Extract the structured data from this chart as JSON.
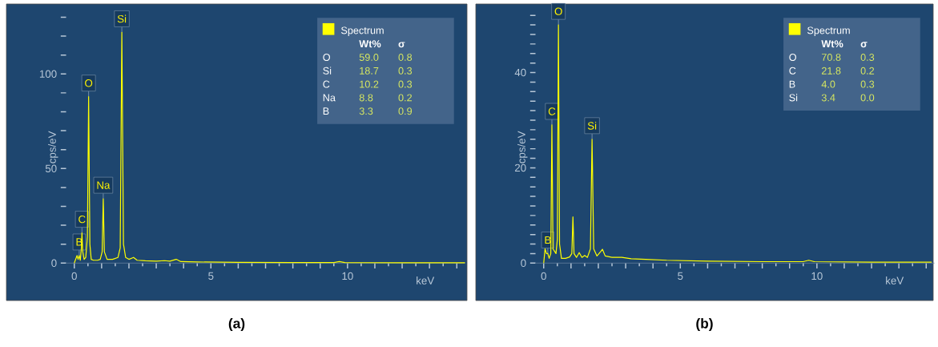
{
  "chart_data": [
    {
      "type": "line",
      "title": "(a)",
      "xlabel": "keV",
      "ylabel": "cps/eV",
      "legend": "top right",
      "xlim": [
        -0.3,
        14.3
      ],
      "ylim": [
        0,
        136
      ],
      "xticks": [
        0,
        {
          "value": 1,
          "label": null
        },
        {
          "value": 2,
          "label": null
        },
        {
          "value": 3,
          "label": null
        },
        {
          "value": 4,
          "label": null
        },
        5,
        {
          "value": 6,
          "label": null
        },
        {
          "value": 7,
          "label": null
        },
        {
          "value": 8,
          "label": null
        },
        {
          "value": 9,
          "label": null
        },
        10,
        {
          "value": 11,
          "label": null
        },
        {
          "value": 12,
          "label": null
        },
        {
          "value": 13,
          "label": null
        },
        {
          "value": 14,
          "label": null
        }
      ],
      "yticks": [
        0,
        {
          "value": 10,
          "label": null
        },
        {
          "value": 20,
          "label": null
        },
        {
          "value": 30,
          "label": null
        },
        {
          "value": 40,
          "label": null
        },
        50,
        {
          "value": 60,
          "label": null
        },
        {
          "value": 70,
          "label": null
        },
        {
          "value": 80,
          "label": null
        },
        {
          "value": 90,
          "label": null
        },
        100,
        {
          "value": 110,
          "label": null
        },
        {
          "value": 120,
          "label": null
        },
        {
          "value": 130,
          "label": null
        }
      ],
      "series": [
        {
          "name": "Spectrum",
          "color": "#ffff00",
          "x": [
            0,
            0.05,
            0.1,
            0.14,
            0.18,
            0.22,
            0.26,
            0.28,
            0.31,
            0.36,
            0.42,
            0.48,
            0.525,
            0.57,
            0.62,
            0.7,
            0.85,
            0.95,
            1.02,
            1.06,
            1.1,
            1.2,
            1.4,
            1.6,
            1.68,
            1.74,
            1.8,
            1.88,
            2.0,
            2.17,
            2.3,
            2.6,
            3.0,
            3.3,
            3.5,
            3.73,
            3.9,
            4.5,
            6,
            8,
            9.5,
            9.7,
            9.9,
            12,
            14.3
          ],
          "values": [
            0,
            2,
            4,
            2,
            4,
            1.5,
            8,
            16,
            6,
            2,
            3,
            14,
            88,
            10,
            2,
            1.5,
            1.5,
            2,
            6,
            34,
            6,
            2,
            2,
            3,
            8,
            122,
            10,
            3,
            2,
            3,
            1.5,
            1.2,
            1,
            1.3,
            1,
            2,
            0.8,
            0.6,
            0.4,
            0.3,
            0.3,
            0.8,
            0.3,
            0.2,
            0.2
          ]
        }
      ],
      "annotations": [
        {
          "text": "B",
          "x": 0.18,
          "y": 4
        },
        {
          "text": "C",
          "x": 0.28,
          "y": 16
        },
        {
          "text": "O",
          "x": 0.525,
          "y": 88
        },
        {
          "text": "Na",
          "x": 1.06,
          "y": 34
        },
        {
          "text": "Si",
          "x": 1.74,
          "y": 122
        },
        "Wt%",
        "σ",
        "O",
        "59.0",
        "0.8",
        "Si",
        "18.7",
        "0.3",
        "C",
        "10.2",
        "0.3",
        "Na",
        "8.8",
        "0.2",
        "B",
        "3.3",
        "0.9"
      ]
    },
    {
      "type": "line",
      "title": "(b)",
      "xlabel": "keV",
      "ylabel": "cps/eV",
      "legend": "top right",
      "xlim": [
        -0.3,
        14.3
      ],
      "ylim": [
        0,
        54
      ],
      "xticks": [
        0,
        {
          "value": 1,
          "label": null
        },
        {
          "value": 2,
          "label": null
        },
        {
          "value": 3,
          "label": null
        },
        {
          "value": 4,
          "label": null
        },
        5,
        {
          "value": 6,
          "label": null
        },
        {
          "value": 7,
          "label": null
        },
        {
          "value": 8,
          "label": null
        },
        {
          "value": 9,
          "label": null
        },
        10,
        {
          "value": 11,
          "label": null
        },
        {
          "value": 12,
          "label": null
        },
        {
          "value": 13,
          "label": null
        },
        {
          "value": 14,
          "label": null
        }
      ],
      "yticks": [
        0,
        {
          "value": 2,
          "label": null
        },
        {
          "value": 4,
          "label": null
        },
        {
          "value": 6,
          "label": null
        },
        {
          "value": 8,
          "label": null
        },
        {
          "value": 10,
          "label": null
        },
        {
          "value": 12,
          "label": null
        },
        {
          "value": 14,
          "label": null
        },
        {
          "value": 16,
          "label": null
        },
        {
          "value": 18,
          "label": null
        },
        20,
        {
          "value": 22,
          "label": null
        },
        {
          "value": 24,
          "label": null
        },
        {
          "value": 26,
          "label": null
        },
        {
          "value": 28,
          "label": null
        },
        {
          "value": 30,
          "label": null
        },
        {
          "value": 32,
          "label": null
        },
        {
          "value": 34,
          "label": null
        },
        {
          "value": 36,
          "label": null
        },
        {
          "value": 38,
          "label": null
        },
        40,
        {
          "value": 42,
          "label": null
        },
        {
          "value": 44,
          "label": null
        },
        {
          "value": 46,
          "label": null
        },
        {
          "value": 48,
          "label": null
        },
        {
          "value": 50,
          "label": null
        },
        {
          "value": 52,
          "label": null
        }
      ],
      "series": [
        {
          "name": "Spectrum",
          "color": "#ffff00",
          "x": [
            0,
            0.05,
            0.1,
            0.15,
            0.2,
            0.26,
            0.3,
            0.34,
            0.45,
            0.5,
            0.54,
            0.58,
            0.65,
            0.8,
            0.95,
            1.03,
            1.07,
            1.11,
            1.2,
            1.3,
            1.4,
            1.5,
            1.6,
            1.71,
            1.77,
            1.83,
            1.95,
            2.1,
            2.15,
            2.25,
            2.5,
            2.86,
            3.2,
            3.73,
            4.5,
            6,
            8,
            9.5,
            9.7,
            9.9,
            12,
            14.2
          ],
          "values": [
            0,
            3,
            2,
            2,
            1,
            2,
            29,
            3,
            2,
            5,
            50,
            4,
            1,
            1,
            1.3,
            2,
            9.7,
            2,
            1.2,
            2.2,
            1.2,
            1.6,
            1.2,
            3,
            26,
            3,
            1.5,
            2.5,
            2.9,
            1.5,
            1.2,
            1.2,
            0.9,
            0.8,
            0.6,
            0.4,
            0.3,
            0.3,
            0.6,
            0.3,
            0.2,
            0.2
          ]
        }
      ],
      "annotations": [
        {
          "text": "B",
          "x": 0.15,
          "y": 2
        },
        {
          "text": "C",
          "x": 0.3,
          "y": 29
        },
        {
          "text": "O",
          "x": 0.54,
          "y": 50
        },
        {
          "text": "Si",
          "x": 1.77,
          "y": 26
        },
        "Wt%",
        "σ",
        "O",
        "70.8",
        "0.3",
        "C",
        "21.8",
        "0.2",
        "B",
        "4.0",
        "0.3",
        "Si",
        "3.4",
        "0.0"
      ]
    }
  ]
}
